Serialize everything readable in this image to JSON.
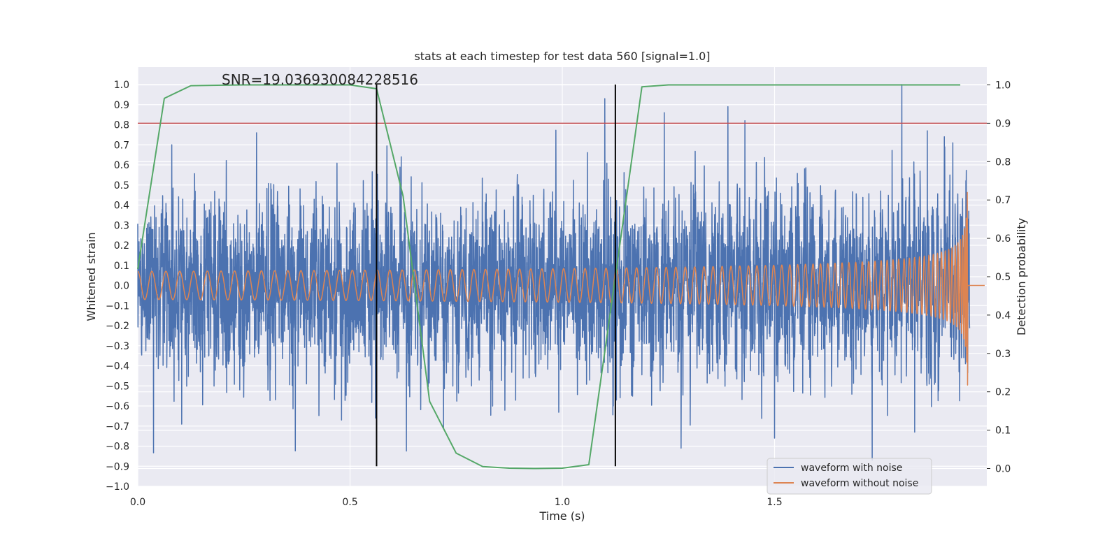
{
  "chart_data": {
    "type": "line",
    "title": "stats at each timestep for test data 560 [signal=1.0]",
    "xlabel": "Time (s)",
    "ylabel": "Whitened strain",
    "y2label": "Detection probability",
    "annotation": "SNR=19.036930084228516",
    "xlim": [
      0.0,
      2.0
    ],
    "ylim": [
      -1.0,
      1.09
    ],
    "y2lim": [
      -0.045,
      1.045
    ],
    "x_ticks": [
      0.0,
      0.5,
      1.0,
      1.5
    ],
    "x_tick_labels": [
      "0.0",
      "0.5",
      "1.0",
      "1.5"
    ],
    "y_ticks": [
      -1.0,
      -0.9,
      -0.8,
      -0.7,
      -0.6,
      -0.5,
      -0.4,
      -0.3,
      -0.2,
      -0.1,
      0.0,
      0.1,
      0.2,
      0.3,
      0.4,
      0.5,
      0.6,
      0.7,
      0.8,
      0.9,
      1.0
    ],
    "y_tick_labels": [
      "−1.0",
      "−0.9",
      "−0.8",
      "−0.7",
      "−0.6",
      "−0.5",
      "−0.4",
      "−0.3",
      "−0.2",
      "−0.1",
      "0.0",
      "0.1",
      "0.2",
      "0.3",
      "0.4",
      "0.5",
      "0.6",
      "0.7",
      "0.8",
      "0.9",
      "1.0"
    ],
    "y2_ticks": [
      0.0,
      0.1,
      0.2,
      0.3,
      0.4,
      0.5,
      0.6,
      0.7,
      0.8,
      0.9,
      1.0
    ],
    "y2_tick_labels": [
      "0.0",
      "0.1",
      "0.2",
      "0.3",
      "0.4",
      "0.5",
      "0.6",
      "0.7",
      "0.8",
      "0.9",
      "1.0"
    ],
    "grid": true,
    "legend_position": "bottom-right",
    "series": [
      {
        "name": "waveform with noise",
        "color": "#4c72b0",
        "axis": "left",
        "kind": "noise",
        "sample_rate": 2048,
        "duration": 1.96,
        "noise_sigma": 0.21,
        "seed": 560,
        "peaks": [
          {
            "x": 0.08,
            "y": 0.7
          },
          {
            "x": 0.28,
            "y": 0.76
          },
          {
            "x": 0.48,
            "y": -0.67
          },
          {
            "x": 0.56,
            "y": -0.66
          },
          {
            "x": 0.72,
            "y": -0.71
          },
          {
            "x": 1.1,
            "y": 0.93
          },
          {
            "x": 1.12,
            "y": -0.6
          },
          {
            "x": 1.24,
            "y": 0.86
          },
          {
            "x": 1.28,
            "y": -0.81
          },
          {
            "x": 1.39,
            "y": 0.89
          },
          {
            "x": 1.43,
            "y": 0.82
          },
          {
            "x": 1.5,
            "y": -0.76
          },
          {
            "x": 1.73,
            "y": -0.87
          },
          {
            "x": 1.8,
            "y": 1.0
          },
          {
            "x": 1.86,
            "y": 0.77
          },
          {
            "x": 1.83,
            "y": -0.73
          },
          {
            "x": 1.9,
            "y": 0.74
          },
          {
            "x": 1.92,
            "y": 0.71
          }
        ]
      },
      {
        "name": "waveform without noise",
        "color": "#dd8452",
        "axis": "left",
        "kind": "chirp",
        "start_frequency": 30,
        "coalescence_time": 1.955,
        "tail_end": 1.995,
        "tail_value": 0.0,
        "envelope_base": 0.07,
        "envelope_peak": 0.57
      },
      {
        "name": "detection probability",
        "color": "#55a868",
        "axis": "right",
        "kind": "polyline",
        "x": [
          0.0,
          0.0625,
          0.125,
          0.1875,
          0.25,
          0.3125,
          0.375,
          0.4375,
          0.5,
          0.5625,
          0.625,
          0.6875,
          0.75,
          0.8125,
          0.875,
          0.9375,
          1.0,
          1.0625,
          1.125,
          1.1875,
          1.25,
          1.3125,
          1.375,
          1.4375,
          1.5,
          1.5625,
          1.625,
          1.6875,
          1.75,
          1.8125,
          1.875,
          1.9375
        ],
        "y": [
          0.52,
          0.965,
          0.998,
          0.999,
          1.0,
          1.0,
          1.0,
          1.0,
          1.0,
          0.99,
          0.71,
          0.175,
          0.04,
          0.005,
          0.001,
          0.0,
          0.001,
          0.01,
          0.5,
          0.995,
          1.0,
          1.0,
          1.0,
          1.0,
          1.0,
          1.0,
          1.0,
          1.0,
          1.0,
          1.0,
          1.0,
          1.0
        ]
      }
    ],
    "threshold": {
      "axis": "right",
      "y": 0.9,
      "color": "#c44e52"
    },
    "vertical_markers": {
      "x": [
        0.5625,
        1.125
      ],
      "y_range": [
        -0.9,
        1.0
      ],
      "color": "#000000"
    },
    "legend": [
      {
        "label": "waveform with noise",
        "color": "#4c72b0"
      },
      {
        "label": "waveform without noise",
        "color": "#dd8452"
      }
    ],
    "colors": {
      "plot_background": "#eaeaf2",
      "grid": "#ffffff",
      "text": "#262626"
    }
  }
}
